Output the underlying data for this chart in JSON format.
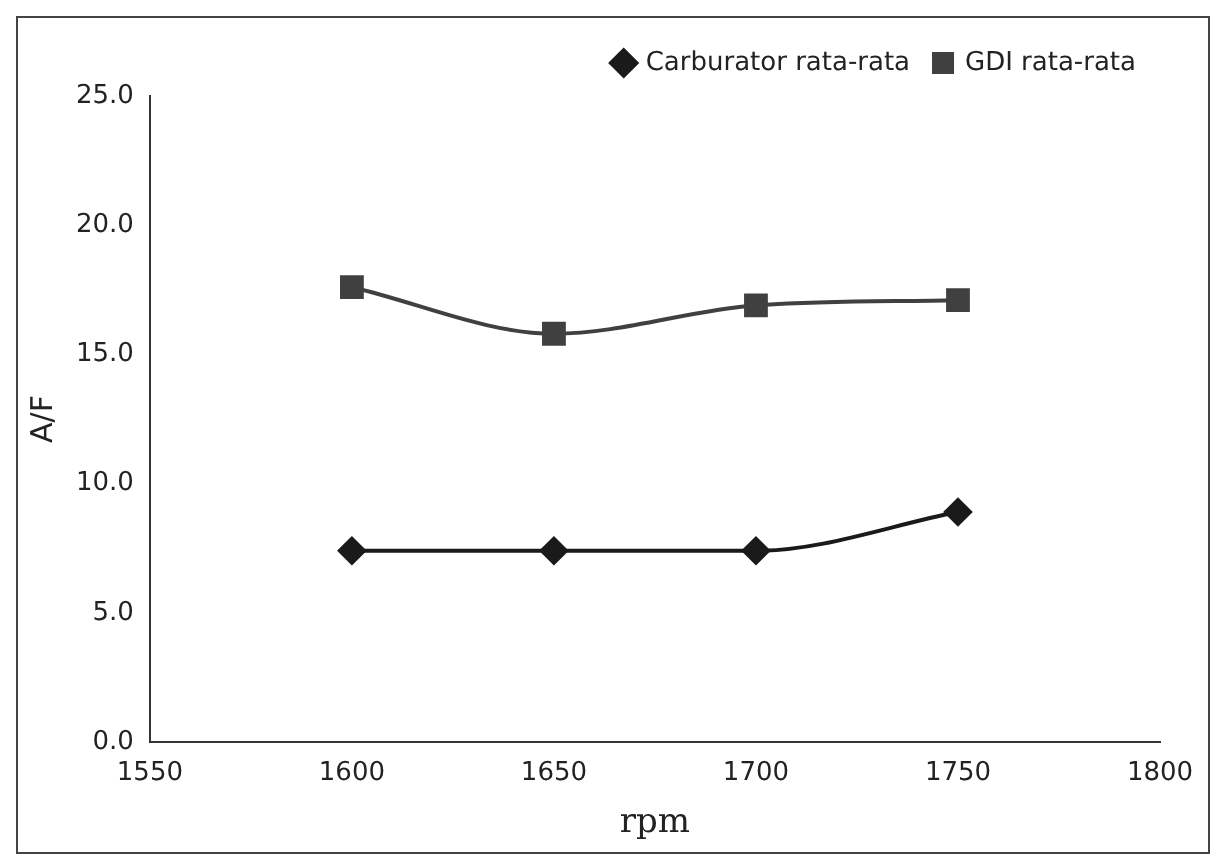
{
  "chart_data": {
    "type": "line",
    "xlabel": "rpm",
    "ylabel": "A/F",
    "x": [
      1600,
      1650,
      1700,
      1750
    ],
    "xlim": [
      1550,
      1800
    ],
    "xticks": [
      1550,
      1600,
      1650,
      1700,
      1750,
      1800
    ],
    "ylim": [
      0,
      25
    ],
    "yticks": [
      {
        "value": 0,
        "label": "0.0"
      },
      {
        "value": 5,
        "label": "5.0"
      },
      {
        "value": 10,
        "label": "10.0"
      },
      {
        "value": 15,
        "label": "15.0"
      },
      {
        "value": 20,
        "label": "20.0"
      },
      {
        "value": 25,
        "label": "25.0"
      }
    ],
    "grid": false,
    "legend": "top right",
    "series": [
      {
        "name": "Carburator rata-rata",
        "color": "#1a1a1a",
        "marker": "diamond",
        "values": [
          7.4,
          7.4,
          7.4,
          8.9
        ]
      },
      {
        "name": "GDI rata-rata",
        "color": "#404040",
        "marker": "square",
        "values": [
          17.6,
          15.8,
          16.9,
          17.1
        ]
      }
    ]
  }
}
